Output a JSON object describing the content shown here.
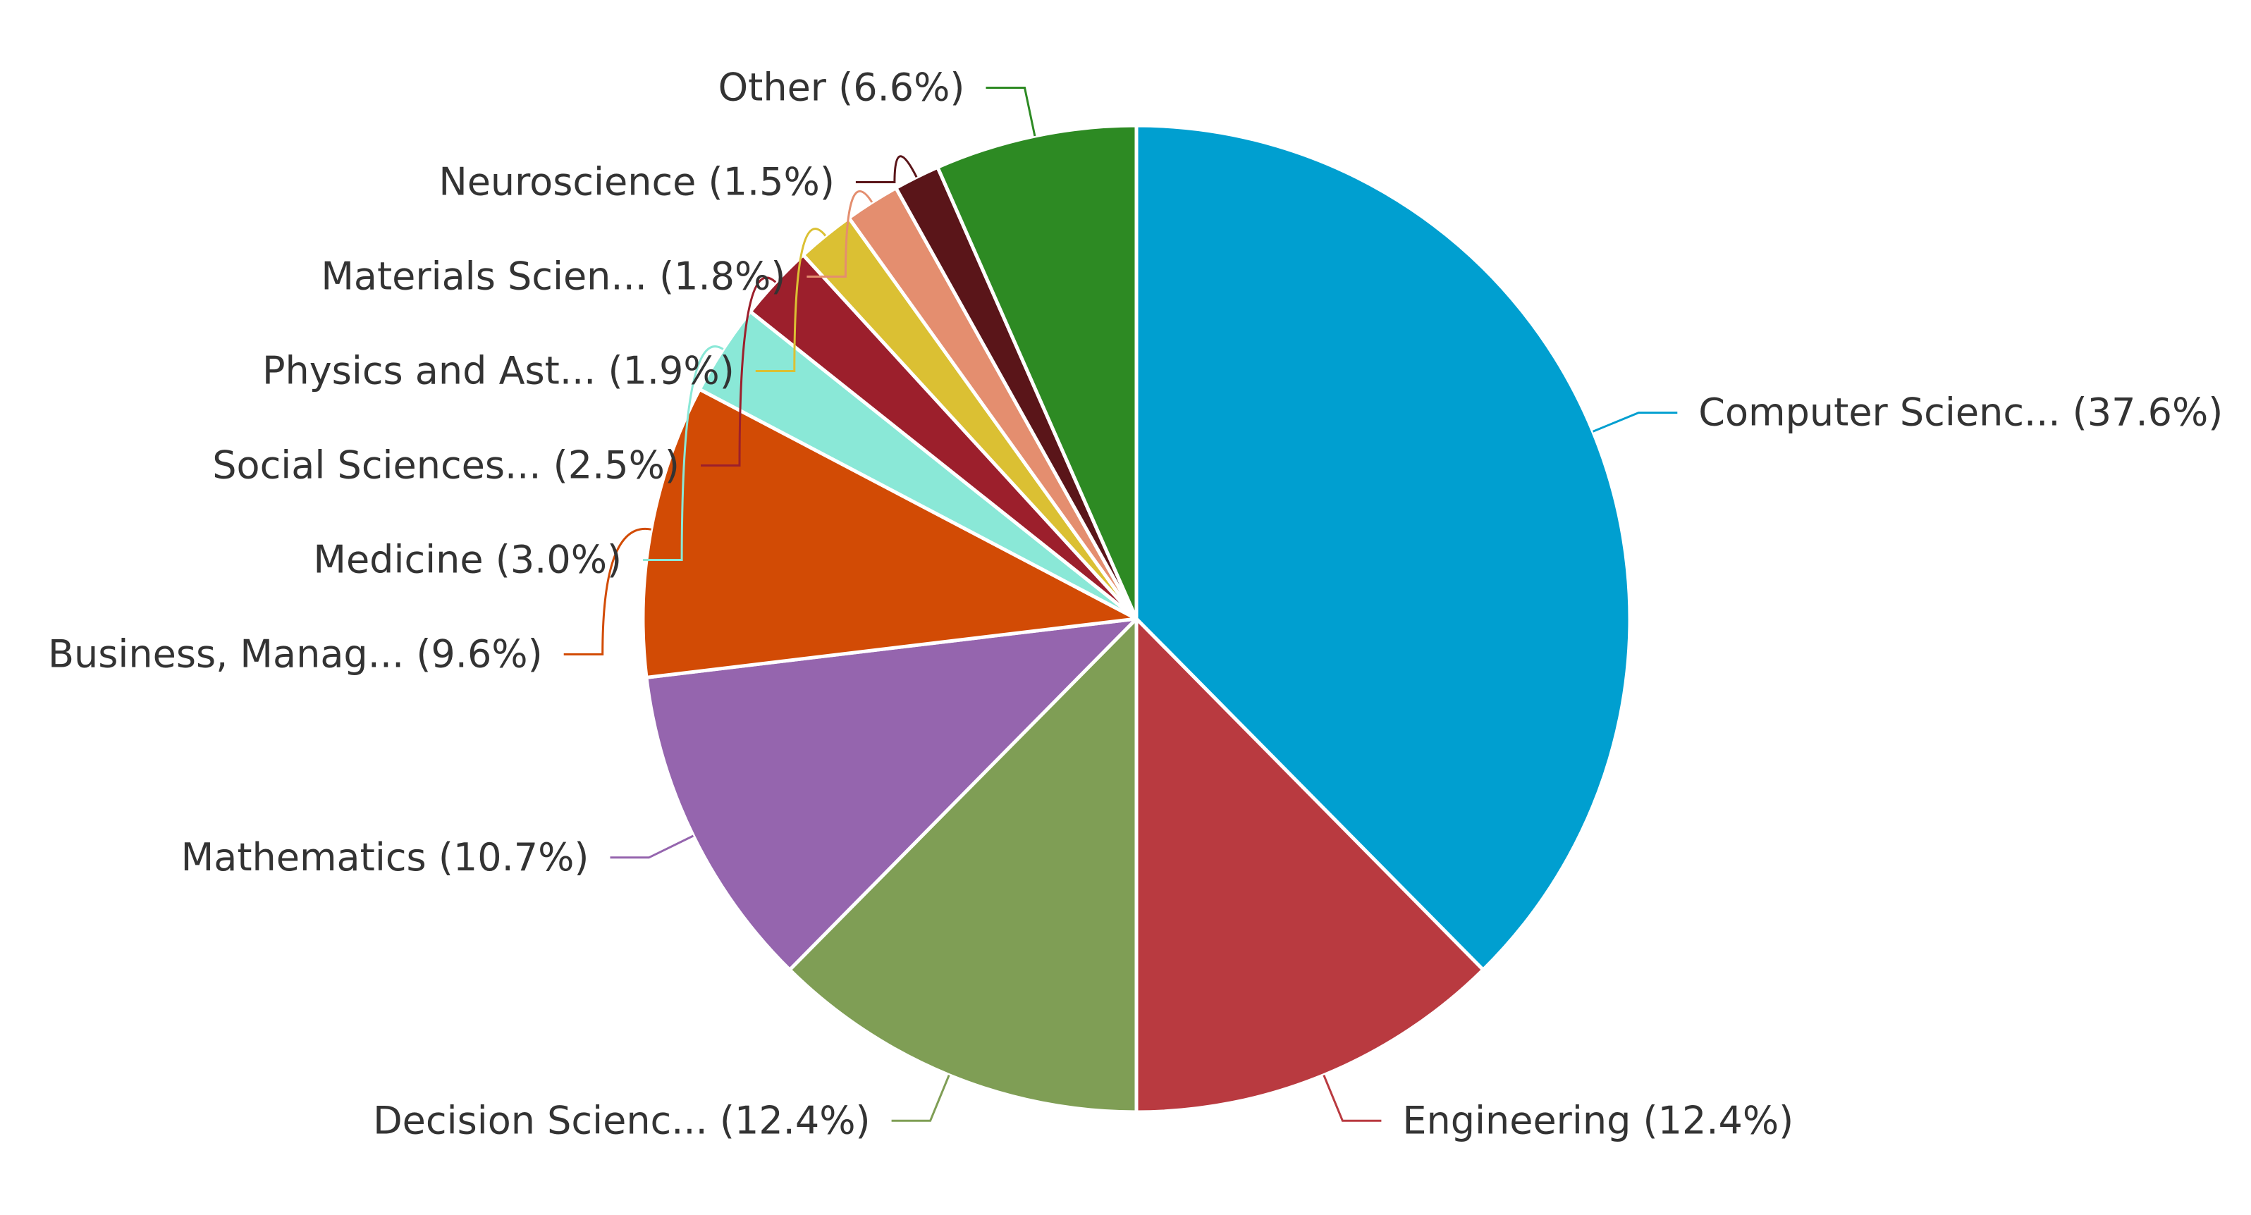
{
  "chart_data": {
    "type": "pie",
    "title": "",
    "start_angle_deg": 0,
    "direction": "clockwise",
    "slices": [
      {
        "label": "Computer Scienc... (37.6%)",
        "name": "Computer Scienc...",
        "value": 37.6,
        "color": "#009fd0",
        "label_side": "right"
      },
      {
        "label": "Engineering (12.4%)",
        "name": "Engineering",
        "value": 12.4,
        "color": "#b93a40",
        "label_side": "right"
      },
      {
        "label": "Decision Scienc... (12.4%)",
        "name": "Decision Scienc...",
        "value": 12.4,
        "color": "#7f9e55",
        "label_side": "left"
      },
      {
        "label": "Mathematics (10.7%)",
        "name": "Mathematics",
        "value": 10.7,
        "color": "#9565ae",
        "label_side": "left"
      },
      {
        "label": "Business, Manag... (9.6%)",
        "name": "Business, Manag...",
        "value": 9.6,
        "color": "#d24b05",
        "label_side": "left"
      },
      {
        "label": "Medicine (3.0%)",
        "name": "Medicine",
        "value": 3.0,
        "color": "#8ae8d7",
        "label_side": "left"
      },
      {
        "label": "Social Sciences... (2.5%)",
        "name": "Social Sciences...",
        "value": 2.5,
        "color": "#9c1f2c",
        "label_side": "left"
      },
      {
        "label": "Physics and Ast... (1.9%)",
        "name": "Physics and Ast...",
        "value": 1.9,
        "color": "#dbc033",
        "label_side": "left"
      },
      {
        "label": "Materials Scien... (1.8%)",
        "name": "Materials Scien...",
        "value": 1.8,
        "color": "#e48e6f",
        "label_side": "left"
      },
      {
        "label": "Neuroscience (1.5%)",
        "name": "Neuroscience",
        "value": 1.5,
        "color": "#5a1519",
        "label_side": "left"
      },
      {
        "label": "Other (6.6%)",
        "name": "Other",
        "value": 6.6,
        "color": "#2d8a23",
        "label_side": "left"
      }
    ]
  }
}
